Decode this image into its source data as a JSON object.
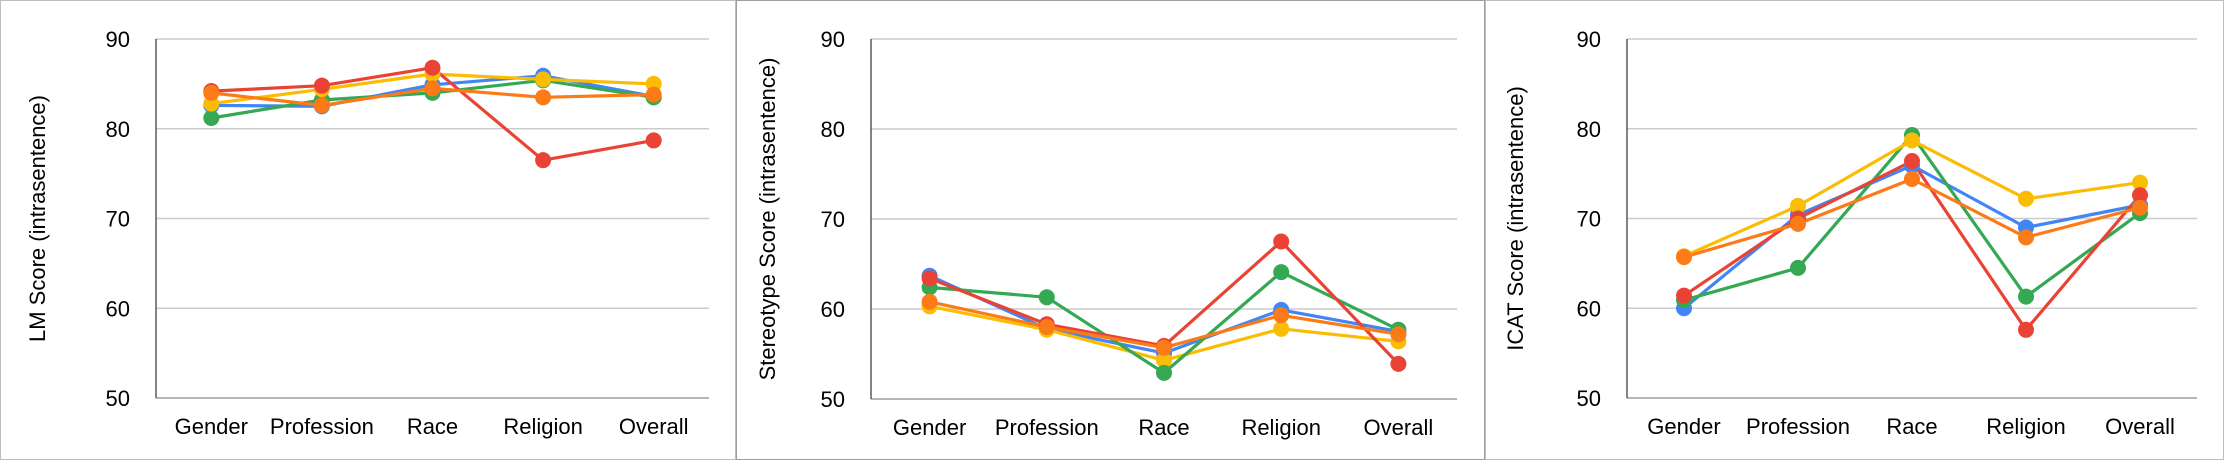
{
  "chart_data": [
    {
      "type": "line",
      "title": "",
      "ylabel": "LM Score (intrasentence)",
      "xlabel": "",
      "categories": [
        "Gender",
        "Profession",
        "Race",
        "Religion",
        "Overall"
      ],
      "ylim": [
        50,
        90
      ],
      "yticks": [
        50,
        60,
        70,
        80,
        90
      ],
      "grid": true,
      "series": [
        {
          "color": "#4285f4",
          "values": [
            82.6,
            82.5,
            84.9,
            85.9,
            83.6
          ]
        },
        {
          "color": "#34a853",
          "values": [
            81.2,
            83.2,
            84.0,
            85.4,
            83.5
          ]
        },
        {
          "color": "#fbbc04",
          "values": [
            82.8,
            84.4,
            86.1,
            85.5,
            85.0
          ]
        },
        {
          "color": "#ea4335",
          "values": [
            84.2,
            84.8,
            86.8,
            76.5,
            78.7
          ]
        },
        {
          "color": "#fa7b17",
          "values": [
            84.0,
            82.6,
            84.5,
            83.5,
            83.8
          ]
        }
      ]
    },
    {
      "type": "line",
      "title": "",
      "ylabel": "Stereotype Score (intrasentence)",
      "xlabel": "",
      "categories": [
        "Gender",
        "Profession",
        "Race",
        "Religion",
        "Overall"
      ],
      "ylim": [
        50,
        90
      ],
      "yticks": [
        50,
        60,
        70,
        80,
        90
      ],
      "grid": true,
      "series": [
        {
          "color": "#4285f4",
          "values": [
            63.7,
            57.8,
            55.1,
            59.9,
            57.5
          ]
        },
        {
          "color": "#fbbc04",
          "values": [
            60.3,
            57.7,
            54.3,
            57.8,
            56.4
          ]
        },
        {
          "color": "#34a853",
          "values": [
            62.4,
            61.3,
            52.9,
            64.1,
            57.7
          ]
        },
        {
          "color": "#ea4335",
          "values": [
            63.4,
            58.3,
            55.9,
            67.5,
            53.9
          ]
        },
        {
          "color": "#fa7b17",
          "values": [
            60.8,
            58.0,
            55.7,
            59.3,
            57.2
          ]
        }
      ]
    },
    {
      "type": "line",
      "title": "",
      "ylabel": "ICAT Score (intrasentence)",
      "xlabel": "",
      "categories": [
        "Gender",
        "Profession",
        "Race",
        "Religion",
        "Overall"
      ],
      "ylim": [
        50,
        90
      ],
      "yticks": [
        50,
        60,
        70,
        80,
        90
      ],
      "grid": true,
      "series": [
        {
          "color": "#4285f4",
          "values": [
            60.0,
            70.4,
            75.9,
            69.0,
            71.5
          ]
        },
        {
          "color": "#34a853",
          "values": [
            60.9,
            64.5,
            79.3,
            61.3,
            70.6
          ]
        },
        {
          "color": "#fbbc04",
          "values": [
            65.8,
            71.4,
            78.7,
            72.2,
            74.0
          ]
        },
        {
          "color": "#ea4335",
          "values": [
            61.4,
            70.0,
            76.4,
            57.6,
            72.6
          ]
        },
        {
          "color": "#fa7b17",
          "values": [
            65.7,
            69.4,
            74.4,
            67.9,
            71.2
          ]
        }
      ]
    }
  ]
}
